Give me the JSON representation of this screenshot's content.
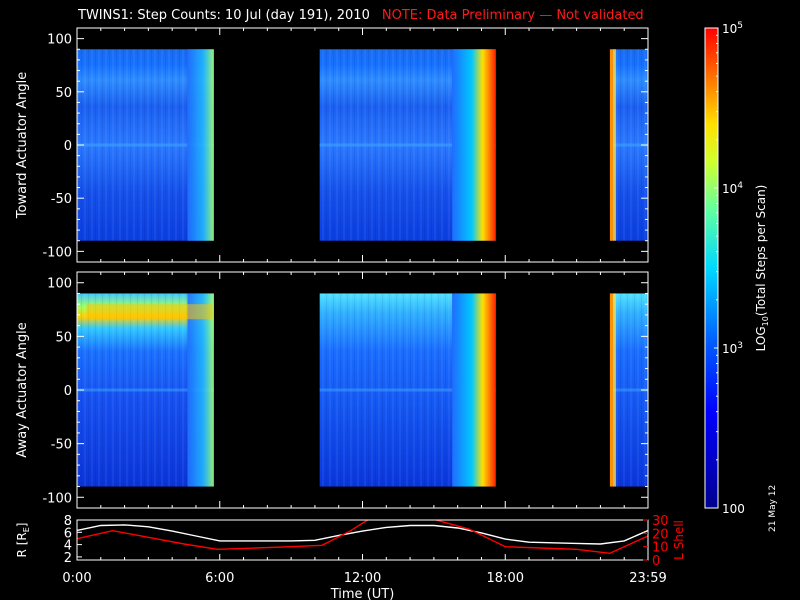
{
  "title": "TWINS1: Step Counts: 10 Jul (day 191), 2010",
  "note": "NOTE: Data Preliminary — Not validated",
  "side_date": "21 May 12",
  "colors": {
    "background": "#000000",
    "axis": "#ffffff",
    "note": "#ff1a1a",
    "lshell": "#ff0000",
    "rvalue": "#ffffff"
  },
  "chart_data": [
    {
      "type": "heatmap",
      "ylabel": "Toward Actuator Angle",
      "ylim": [
        -110,
        110
      ],
      "yticks": [
        100,
        50,
        0,
        -50,
        -100
      ],
      "data_y_range": [
        -90,
        90
      ],
      "x_range_hours": [
        0,
        24
      ],
      "coverage_hours": [
        [
          0,
          5.75
        ],
        [
          10.2,
          17.6
        ],
        [
          22.4,
          24
        ]
      ],
      "bright_edges_hours": [
        5.65,
        17.45,
        22.45
      ],
      "color_scale": "log"
    },
    {
      "type": "heatmap",
      "ylabel": "Away Actuator Angle",
      "ylim": [
        -110,
        110
      ],
      "yticks": [
        100,
        50,
        0,
        -50,
        -100
      ],
      "data_y_range": [
        -90,
        90
      ],
      "x_range_hours": [
        0,
        24
      ],
      "coverage_hours": [
        [
          0,
          5.75
        ],
        [
          10.2,
          17.6
        ],
        [
          22.4,
          24
        ]
      ],
      "bright_edges_hours": [
        5.65,
        17.45,
        22.45
      ],
      "color_scale": "log"
    },
    {
      "type": "line",
      "ylabel_left": "R [R",
      "ylabel_left_sub": "E",
      "ylabel_right": "L Shell",
      "xlabel": "Time (UT)",
      "xticklabels": [
        "0:00",
        "6:00",
        "12:00",
        "18:00",
        "23:59"
      ],
      "x_tick_hours": [
        0,
        6,
        12,
        18,
        24
      ],
      "ylim_left": [
        1.5,
        8
      ],
      "yticks_left": [
        8,
        6,
        4,
        2
      ],
      "ylim_right": [
        0,
        30
      ],
      "yticks_right": [
        30,
        20,
        10,
        0
      ],
      "series": [
        {
          "axis": "left",
          "x": [
            0,
            1,
            2,
            3,
            4,
            5,
            6,
            7,
            8,
            9,
            10,
            11,
            12,
            13,
            14,
            15,
            16,
            17,
            18,
            19,
            20,
            21,
            22,
            23,
            24
          ],
          "y": [
            6.3,
            7.1,
            7.2,
            6.9,
            6.2,
            5.4,
            4.6,
            4.6,
            4.6,
            4.6,
            4.7,
            5.5,
            6.2,
            6.8,
            7.1,
            7.1,
            6.7,
            5.9,
            4.9,
            4.4,
            4.3,
            4.2,
            4.1,
            4.6,
            6.3
          ]
        },
        {
          "axis": "right",
          "x": [
            0,
            1.5,
            3,
            4.5,
            5.9,
            7.5,
            9,
            10.3,
            11.5,
            12.3,
            14.9,
            16.5,
            18,
            19.5,
            21,
            22.4,
            23,
            24
          ],
          "y": [
            16,
            22,
            17,
            12,
            8,
            9,
            10,
            11,
            22,
            31,
            31,
            23,
            10,
            9,
            8,
            5,
            10,
            18
          ]
        }
      ]
    },
    {
      "type": "colorbar",
      "scale": "log",
      "range": [
        100,
        100000
      ],
      "label_main": "LOG",
      "label_sub": "10",
      "label_rest": "(Total Steps per Scan)",
      "ticks": [
        {
          "value": 100000,
          "base": "10",
          "exp": "5"
        },
        {
          "value": 10000,
          "base": "10",
          "exp": "4"
        },
        {
          "value": 1000,
          "base": "10",
          "exp": "3"
        },
        {
          "value": 100,
          "base": "100",
          "exp": ""
        }
      ]
    }
  ]
}
